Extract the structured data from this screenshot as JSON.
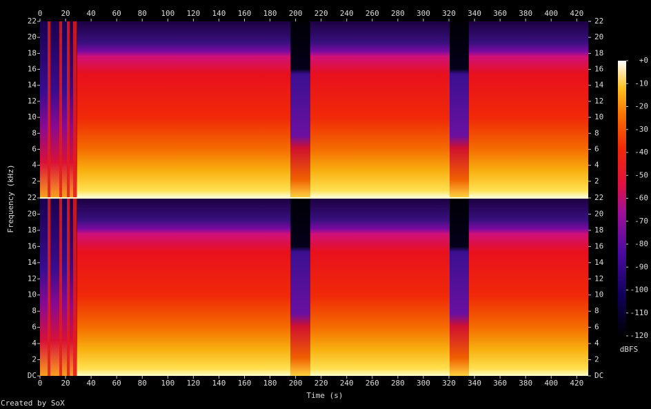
{
  "chart_data": {
    "type": "spectrogram",
    "x_label": "Time (s)",
    "y_label": "Frequency (kHz)",
    "xlim": [
      0,
      429
    ],
    "xticks": [
      0,
      20,
      40,
      60,
      80,
      100,
      120,
      140,
      160,
      180,
      200,
      220,
      240,
      260,
      280,
      300,
      320,
      340,
      360,
      380,
      400,
      420
    ],
    "channels": [
      {
        "ylim": [
          0,
          22
        ],
        "yticks": [
          2,
          4,
          6,
          8,
          10,
          12,
          14,
          16,
          18,
          20,
          22
        ]
      },
      {
        "ylim": [
          0,
          22
        ],
        "yticks": [
          {
            "value": 0,
            "label": "DC"
          },
          2,
          4,
          6,
          8,
          10,
          12,
          14,
          16,
          18,
          20,
          22
        ]
      }
    ],
    "colorbar": {
      "label": "dBFS",
      "zlim": [
        -120,
        0
      ],
      "ticks": [
        {
          "value": 0,
          "label": "+0"
        },
        -10,
        -20,
        -30,
        -40,
        -50,
        -60,
        -70,
        -80,
        -90,
        -100,
        -110,
        -120
      ]
    },
    "footer": "Created by SoX"
  }
}
